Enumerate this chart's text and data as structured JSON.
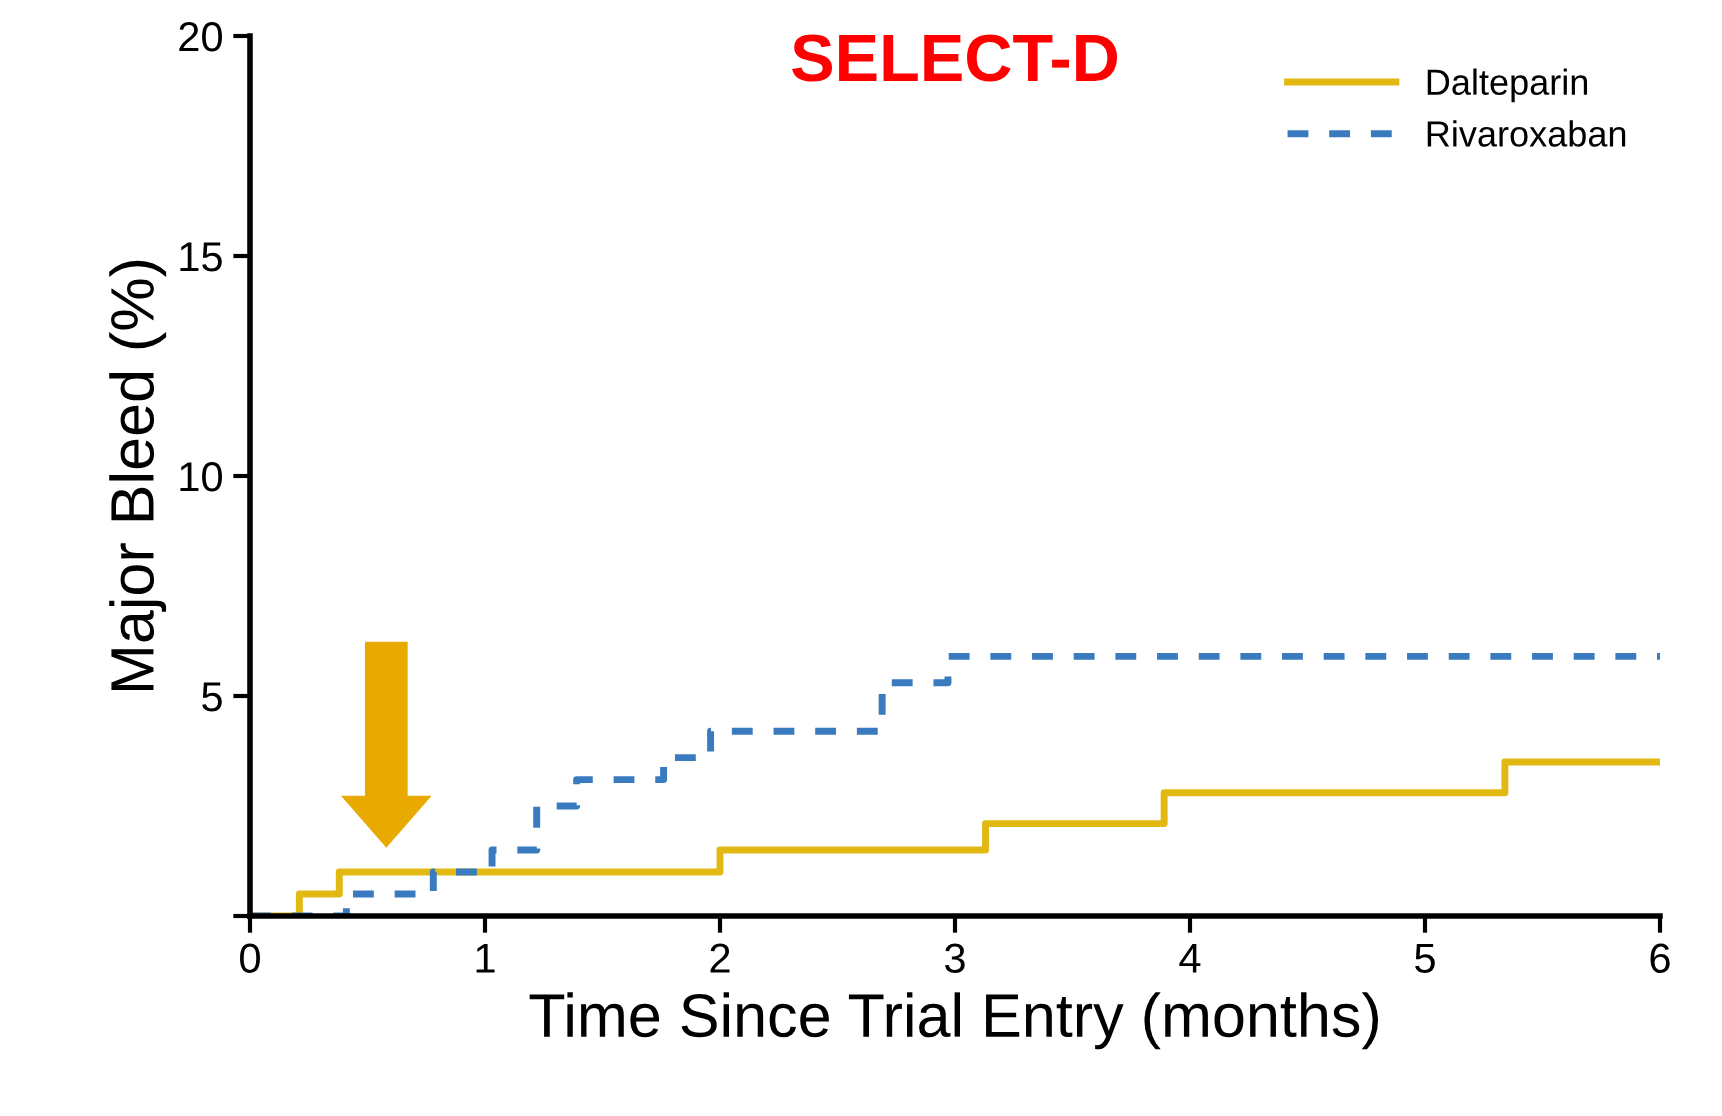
{
  "chart_data": {
    "type": "step",
    "title": "SELECT-D",
    "xlabel": "Time Since Trial Entry (months)",
    "ylabel": "Major Bleed (%)",
    "xlim": [
      0,
      6
    ],
    "xticks": [
      0,
      1,
      2,
      3,
      4,
      5,
      6
    ],
    "ylim": [
      0,
      20
    ],
    "yticks": [
      {
        "value": 0,
        "label": null
      },
      5,
      10,
      15,
      20
    ],
    "grid": false,
    "legend": "top right",
    "series": [
      {
        "name": "Dalteparin",
        "color": "#e2b912",
        "line_style": "solid",
        "x": [
          0,
          0.21,
          0.38,
          2.0,
          3.13,
          3.89,
          5.34,
          6.0
        ],
        "values": [
          0,
          0.5,
          1.0,
          1.5,
          2.1,
          2.8,
          3.5,
          3.5
        ]
      },
      {
        "name": "Rivaroxaban",
        "color": "#3a7abf",
        "line_style": "dashed",
        "x": [
          0,
          0.41,
          0.78,
          1.03,
          1.22,
          1.39,
          1.76,
          1.96,
          2.69,
          2.97,
          6.0
        ],
        "values": [
          0,
          0.5,
          1.0,
          1.5,
          2.5,
          3.1,
          3.6,
          4.2,
          5.3,
          5.9,
          5.9
        ]
      }
    ]
  }
}
